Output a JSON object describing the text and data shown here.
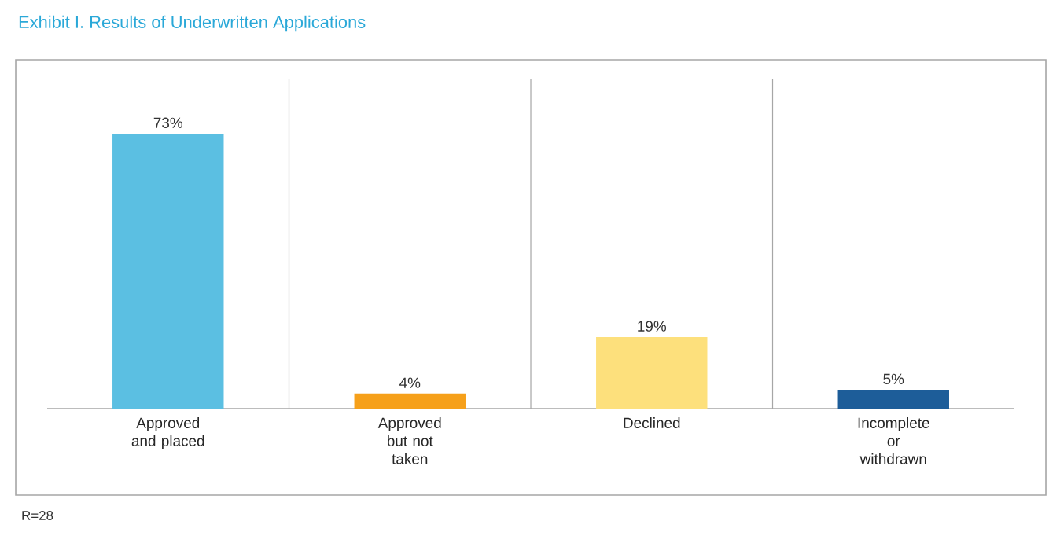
{
  "chart_data": {
    "type": "bar",
    "title": "Exhibit I. Results of Underwritten Applications",
    "categories": [
      "Approved and placed",
      "Approved but not taken",
      "Declined",
      "Incomplete or withdrawn"
    ],
    "values": [
      73,
      4,
      19,
      5
    ],
    "value_labels": [
      "73%",
      "4%",
      "19%",
      "5%"
    ],
    "colors": [
      "#5bbfe2",
      "#f6a01a",
      "#fde07c",
      "#1d5d99"
    ],
    "annotations": [
      "R=28"
    ]
  }
}
